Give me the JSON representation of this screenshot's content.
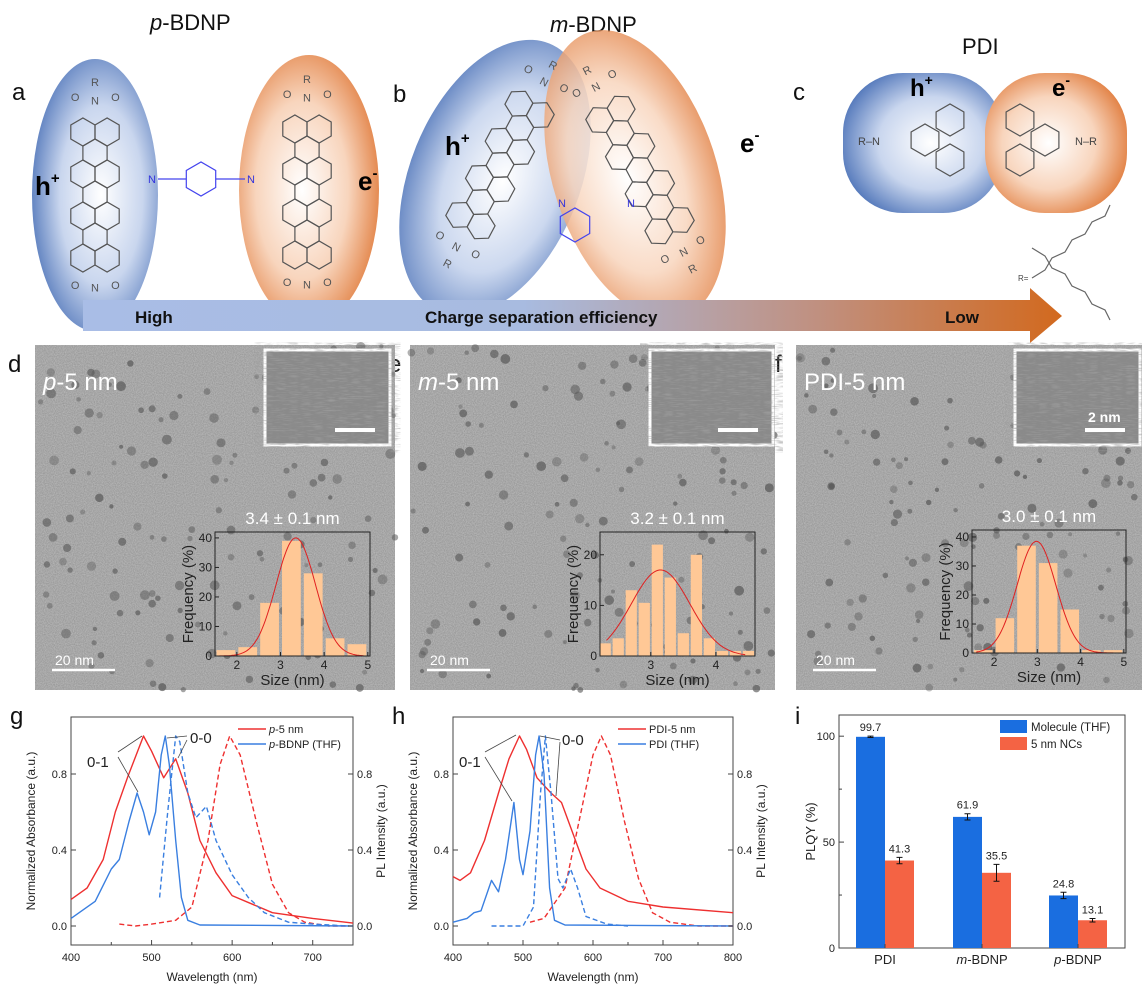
{
  "panel_labels": {
    "a": "a",
    "b": "b",
    "c": "c",
    "d": "d",
    "e": "e",
    "f": "f",
    "g": "g",
    "h": "h",
    "i": "i"
  },
  "molecules": {
    "p_bdnp": {
      "italic": "p",
      "rest": "-BDNP"
    },
    "m_bdnp": {
      "italic": "m",
      "rest": "-BDNP"
    },
    "pdi": "PDI",
    "hole": {
      "base": "h",
      "sup": "+"
    },
    "electron": {
      "base": "e",
      "sup": "-"
    },
    "atom_N": "N",
    "atom_O": "O",
    "atom_R": "R",
    "r_def": "R="
  },
  "arrow": {
    "left": "High",
    "center": "Charge separation efficiency",
    "right": "Low",
    "color_start": "#a9bde6",
    "color_end": "#d2691e"
  },
  "tem": [
    {
      "label_italic": "p",
      "label_rest": "-5 nm",
      "size": "3.4 ± 0.1 nm",
      "scale": "20 nm",
      "inset_scale": ""
    },
    {
      "label_italic": "m",
      "label_rest": "-5 nm",
      "size": "3.2 ± 0.1 nm",
      "scale": "20 nm",
      "inset_scale": ""
    },
    {
      "label_italic": "",
      "label_rest": "PDI-5 nm",
      "size": "3.0 ± 0.1 nm",
      "scale": "20 nm",
      "inset_scale": "2 nm"
    }
  ],
  "colors": {
    "red": "#ee3030",
    "blue": "#3a7fe0",
    "bar_blue": "#1a6ee0",
    "bar_orange": "#f46344",
    "hist": "#ffc896"
  },
  "chart_data": [
    {
      "panel": "d",
      "type": "bar",
      "title": "3.4 ± 0.1 nm",
      "xlabel": "Size (nm)",
      "ylabel": "Frequency (%)",
      "x": [
        1.75,
        2.25,
        2.75,
        3.25,
        3.75,
        4.25,
        4.75
      ],
      "values": [
        2,
        3,
        18,
        39,
        28,
        6,
        4
      ],
      "bin_width": 0.5,
      "xlim": [
        1.5,
        5.05
      ],
      "ylim": [
        0,
        42
      ],
      "xticks": [
        2,
        3,
        4,
        5
      ],
      "yticks": [
        0,
        10,
        20,
        30,
        40
      ],
      "fit": {
        "type": "gaussian",
        "mean": 3.35,
        "sd": 0.45,
        "amp": 40
      }
    },
    {
      "panel": "e",
      "type": "bar",
      "title": "3.2 ± 0.1 nm",
      "xlabel": "Size (nm)",
      "ylabel": "Frequency (%)",
      "x": [
        2.3,
        2.5,
        2.7,
        2.9,
        3.1,
        3.3,
        3.5,
        3.7,
        3.9,
        4.1,
        4.3,
        4.5
      ],
      "values": [
        2.5,
        3.5,
        13,
        10.5,
        22,
        15.5,
        4.5,
        20,
        3.5,
        1,
        1,
        1
      ],
      "bin_width": 0.2,
      "xlim": [
        2.22,
        4.6
      ],
      "ylim": [
        0,
        24.5
      ],
      "xticks": [
        3,
        4
      ],
      "yticks": [
        0,
        10,
        20
      ],
      "fit": {
        "type": "gaussian",
        "mean": 3.15,
        "sd": 0.45,
        "amp": 17
      }
    },
    {
      "panel": "f",
      "type": "bar",
      "title": "3.0 ± 0.1 nm",
      "xlabel": "Size (nm)",
      "ylabel": "Frequency (%)",
      "x": [
        1.75,
        2.25,
        2.75,
        3.25,
        3.75,
        4.25,
        4.75
      ],
      "values": [
        1,
        12,
        37,
        31,
        15,
        1,
        1
      ],
      "bin_width": 0.5,
      "xlim": [
        1.49,
        5.05
      ],
      "ylim": [
        0,
        42.4
      ],
      "xticks": [
        2,
        3,
        4,
        5
      ],
      "yticks": [
        0,
        10,
        20,
        30,
        40
      ],
      "fit": {
        "type": "gaussian",
        "mean": 2.98,
        "sd": 0.45,
        "amp": 38.5
      }
    },
    {
      "panel": "g",
      "type": "line",
      "xlabel": "Wavelength (nm)",
      "ylabel": "Normalized Absorbance (a.u.)",
      "y2label": "PL Intensity (a.u.)",
      "xlim": [
        400,
        750
      ],
      "ylim": [
        -0.1,
        1.1
      ],
      "xticks": [
        400,
        500,
        600,
        700
      ],
      "yticks": [
        0.0,
        0.4,
        0.8
      ],
      "legend": [
        {
          "italic": "p",
          "rest": "-5 nm",
          "color": "#ee3030"
        },
        {
          "italic": "p",
          "rest": "-BDNP (THF)",
          "color": "#3a7fe0"
        }
      ],
      "annotations": [
        "0-1",
        "0-0"
      ],
      "series": [
        {
          "name": "p-5 nm absorbance",
          "color": "#ee3030",
          "dash": false,
          "x": [
            400,
            420,
            440,
            455,
            470,
            490,
            500,
            515,
            530,
            545,
            560,
            580,
            600,
            650,
            700,
            750
          ],
          "y": [
            0.14,
            0.2,
            0.35,
            0.6,
            0.78,
            1.0,
            0.92,
            0.78,
            0.88,
            0.7,
            0.45,
            0.28,
            0.16,
            0.07,
            0.04,
            0.015
          ]
        },
        {
          "name": "p-5 nm PL",
          "color": "#ee3030",
          "dash": true,
          "x": [
            460,
            480,
            500,
            530,
            550,
            570,
            585,
            597,
            610,
            630,
            650,
            670,
            690,
            720,
            745
          ],
          "y": [
            0.01,
            0,
            0.01,
            0.03,
            0.1,
            0.45,
            0.85,
            1.0,
            0.9,
            0.55,
            0.22,
            0.07,
            0.02,
            0,
            0
          ]
        },
        {
          "name": "p-BDNP (THF) absorbance",
          "color": "#3a7fe0",
          "dash": false,
          "x": [
            400,
            430,
            450,
            460,
            472,
            482,
            490,
            497,
            505,
            512,
            517,
            522,
            530,
            537,
            545,
            560,
            750
          ],
          "y": [
            0.04,
            0.13,
            0.3,
            0.35,
            0.55,
            0.7,
            0.6,
            0.48,
            0.6,
            0.9,
            1.0,
            0.85,
            0.45,
            0.15,
            0.03,
            0.005,
            0
          ]
        },
        {
          "name": "p-BDNP (THF) PL",
          "color": "#3a7fe0",
          "dash": true,
          "x": [
            510,
            520,
            530,
            535,
            545,
            555,
            568,
            580,
            600,
            620,
            640,
            670,
            700,
            745
          ],
          "y": [
            0.15,
            0.6,
            1.0,
            0.97,
            0.7,
            0.57,
            0.63,
            0.45,
            0.27,
            0.15,
            0.07,
            0.02,
            0.01,
            0
          ]
        }
      ]
    },
    {
      "panel": "h",
      "type": "line",
      "xlabel": "Wavelength (nm)",
      "ylabel": "Normalized Absorbance (a.u.)",
      "y2label": "PL Intensity (a.u.)",
      "xlim": [
        400,
        800
      ],
      "ylim": [
        -0.1,
        1.1
      ],
      "xticks": [
        400,
        500,
        600,
        700,
        800
      ],
      "yticks": [
        0.0,
        0.4,
        0.8
      ],
      "legend": [
        {
          "italic": "",
          "rest": "PDI-5 nm",
          "color": "#ee3030"
        },
        {
          "italic": "",
          "rest": "PDI (THF)",
          "color": "#3a7fe0"
        }
      ],
      "annotations": [
        "0-1",
        "0-0"
      ],
      "series": [
        {
          "name": "PDI-5 nm absorbance",
          "color": "#ee3030",
          "dash": false,
          "x": [
            400,
            410,
            425,
            445,
            465,
            480,
            495,
            505,
            520,
            540,
            555,
            570,
            590,
            610,
            650,
            700,
            800
          ],
          "y": [
            0.26,
            0.24,
            0.28,
            0.45,
            0.7,
            0.88,
            1.0,
            0.93,
            0.78,
            0.7,
            0.65,
            0.5,
            0.3,
            0.2,
            0.13,
            0.1,
            0.07
          ]
        },
        {
          "name": "PDI-5 nm PL",
          "color": "#ee3030",
          "dash": true,
          "x": [
            510,
            530,
            560,
            580,
            600,
            612,
            625,
            645,
            665,
            685,
            710,
            750,
            800
          ],
          "y": [
            0.02,
            0.04,
            0.2,
            0.55,
            0.9,
            1.0,
            0.9,
            0.55,
            0.25,
            0.07,
            0.02,
            0,
            0
          ]
        },
        {
          "name": "PDI (THF) absorbance",
          "color": "#3a7fe0",
          "dash": false,
          "x": [
            400,
            420,
            430,
            440,
            455,
            465,
            475,
            487,
            495,
            500,
            510,
            518,
            523,
            530,
            538,
            545,
            560,
            800
          ],
          "y": [
            0.02,
            0.04,
            0.07,
            0.08,
            0.24,
            0.18,
            0.35,
            0.65,
            0.35,
            0.27,
            0.5,
            0.9,
            1.0,
            0.8,
            0.2,
            0.03,
            0.005,
            0
          ]
        },
        {
          "name": "PDI (THF) PL",
          "color": "#3a7fe0",
          "dash": true,
          "x": [
            455,
            500,
            515,
            525,
            532,
            540,
            550,
            557,
            568,
            578,
            590,
            620,
            650
          ],
          "y": [
            0,
            0,
            0.1,
            0.7,
            1.0,
            0.7,
            0.25,
            0.2,
            0.3,
            0.2,
            0.05,
            0.01,
            0
          ]
        }
      ]
    },
    {
      "panel": "i",
      "type": "bar",
      "ylabel": "PLQY (%)",
      "ylim": [
        0,
        110
      ],
      "yticks": [
        0,
        50,
        100
      ],
      "categories": [
        {
          "italic": "",
          "rest": "PDI"
        },
        {
          "italic": "m",
          "rest": "-BDNP"
        },
        {
          "italic": "p",
          "rest": "-BDNP"
        }
      ],
      "series": [
        {
          "name": "Molecule (THF)",
          "color": "#1a6ee0",
          "values": [
            99.7,
            61.9,
            24.8
          ],
          "labels": [
            "99.7",
            "61.9",
            "24.8"
          ],
          "errors": [
            0.3,
            1.5,
            1.5
          ]
        },
        {
          "name": "5 nm NCs",
          "color": "#f46344",
          "values": [
            41.3,
            35.5,
            13.1
          ],
          "labels": [
            "41.3",
            "35.5",
            "13.1"
          ],
          "errors": [
            1.5,
            4,
            0.8
          ]
        }
      ],
      "legend_placement": "top-right"
    }
  ]
}
